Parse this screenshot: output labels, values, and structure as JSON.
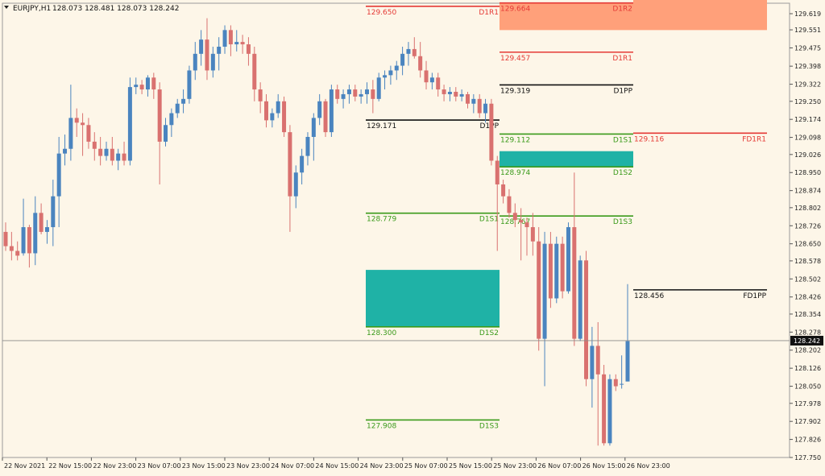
{
  "header": {
    "symbol_timeframe": "EURJPY,H1",
    "ohlc": "128.073 128.481 128.073 128.242"
  },
  "colors": {
    "background": "#fdf6e8",
    "bull": "#4a84bf",
    "bear": "#d9716f",
    "pivot": "#111111",
    "resistance": "#e53935",
    "support": "#3a9a1a",
    "zone_teal": "#1fb2a6",
    "zone_salmon": "#ffa07a",
    "bid_line": "#8a8a8a",
    "price_tag_bg": "#111111",
    "price_tag_fg": "#ffffff"
  },
  "current_price": "128.242",
  "chart_data": {
    "type": "candlestick",
    "ylim": [
      127.7,
      129.7
    ],
    "y_ticks": [
      "129.619",
      "129.551",
      "129.475",
      "129.398",
      "129.322",
      "129.250",
      "129.174",
      "129.098",
      "129.026",
      "128.950",
      "128.874",
      "128.802",
      "128.726",
      "128.650",
      "128.578",
      "128.502",
      "128.426",
      "128.354",
      "128.278",
      "128.202",
      "128.126",
      "128.050",
      "127.978",
      "127.902",
      "127.826",
      "127.750"
    ],
    "x_ticks": [
      "22 Nov 2021",
      "22 Nov 15:00",
      "22 Nov 23:00",
      "23 Nov 07:00",
      "23 Nov 15:00",
      "23 Nov 23:00",
      "24 Nov 07:00",
      "24 Nov 15:00",
      "24 Nov 23:00",
      "25 Nov 07:00",
      "25 Nov 15:00",
      "25 Nov 23:00",
      "26 Nov 07:00",
      "26 Nov 15:00",
      "26 Nov 23:00"
    ],
    "candles": [
      {
        "o": 128.7,
        "h": 128.74,
        "l": 128.62,
        "c": 128.64
      },
      {
        "o": 128.64,
        "h": 128.7,
        "l": 128.58,
        "c": 128.62
      },
      {
        "o": 128.62,
        "h": 128.66,
        "l": 128.58,
        "c": 128.6
      },
      {
        "o": 128.61,
        "h": 128.84,
        "l": 128.6,
        "c": 128.72
      },
      {
        "o": 128.72,
        "h": 128.73,
        "l": 128.55,
        "c": 128.61
      },
      {
        "o": 128.61,
        "h": 128.85,
        "l": 128.56,
        "c": 128.78
      },
      {
        "o": 128.78,
        "h": 128.82,
        "l": 128.69,
        "c": 128.7
      },
      {
        "o": 128.7,
        "h": 128.75,
        "l": 128.65,
        "c": 128.72
      },
      {
        "o": 128.72,
        "h": 128.92,
        "l": 128.64,
        "c": 128.85
      },
      {
        "o": 128.85,
        "h": 129.1,
        "l": 128.72,
        "c": 129.03
      },
      {
        "o": 129.03,
        "h": 129.11,
        "l": 128.98,
        "c": 129.05
      },
      {
        "o": 129.05,
        "h": 129.32,
        "l": 129.0,
        "c": 129.18
      },
      {
        "o": 129.18,
        "h": 129.22,
        "l": 129.1,
        "c": 129.16
      },
      {
        "o": 129.16,
        "h": 129.2,
        "l": 129.02,
        "c": 129.15
      },
      {
        "o": 129.15,
        "h": 129.18,
        "l": 129.05,
        "c": 129.08
      },
      {
        "o": 129.08,
        "h": 129.12,
        "l": 129.0,
        "c": 129.05
      },
      {
        "o": 129.05,
        "h": 129.1,
        "l": 128.98,
        "c": 129.02
      },
      {
        "o": 129.02,
        "h": 129.08,
        "l": 129.0,
        "c": 129.05
      },
      {
        "o": 129.05,
        "h": 129.1,
        "l": 128.98,
        "c": 129.0
      },
      {
        "o": 129.0,
        "h": 129.05,
        "l": 128.96,
        "c": 129.03
      },
      {
        "o": 129.03,
        "h": 129.08,
        "l": 128.98,
        "c": 129.0
      },
      {
        "o": 129.0,
        "h": 129.35,
        "l": 128.98,
        "c": 129.31
      },
      {
        "o": 129.31,
        "h": 129.35,
        "l": 129.28,
        "c": 129.32
      },
      {
        "o": 129.32,
        "h": 129.34,
        "l": 129.28,
        "c": 129.3
      },
      {
        "o": 129.3,
        "h": 129.36,
        "l": 129.27,
        "c": 129.35
      },
      {
        "o": 129.35,
        "h": 129.37,
        "l": 129.26,
        "c": 129.3
      },
      {
        "o": 129.3,
        "h": 129.33,
        "l": 128.9,
        "c": 129.08
      },
      {
        "o": 129.08,
        "h": 129.18,
        "l": 129.06,
        "c": 129.15
      },
      {
        "o": 129.15,
        "h": 129.22,
        "l": 129.1,
        "c": 129.2
      },
      {
        "o": 129.2,
        "h": 129.26,
        "l": 129.18,
        "c": 129.24
      },
      {
        "o": 129.24,
        "h": 129.3,
        "l": 129.2,
        "c": 129.26
      },
      {
        "o": 129.26,
        "h": 129.4,
        "l": 129.24,
        "c": 129.38
      },
      {
        "o": 129.38,
        "h": 129.5,
        "l": 129.34,
        "c": 129.45
      },
      {
        "o": 129.45,
        "h": 129.55,
        "l": 129.4,
        "c": 129.51
      },
      {
        "o": 129.51,
        "h": 129.6,
        "l": 129.34,
        "c": 129.38
      },
      {
        "o": 129.38,
        "h": 129.48,
        "l": 129.35,
        "c": 129.45
      },
      {
        "o": 129.45,
        "h": 129.52,
        "l": 129.38,
        "c": 129.48
      },
      {
        "o": 129.48,
        "h": 129.57,
        "l": 129.45,
        "c": 129.55
      },
      {
        "o": 129.55,
        "h": 129.57,
        "l": 129.44,
        "c": 129.49
      },
      {
        "o": 129.49,
        "h": 129.55,
        "l": 129.46,
        "c": 129.5
      },
      {
        "o": 129.5,
        "h": 129.53,
        "l": 129.45,
        "c": 129.49
      },
      {
        "o": 129.49,
        "h": 129.52,
        "l": 129.4,
        "c": 129.45
      },
      {
        "o": 129.45,
        "h": 129.48,
        "l": 129.25,
        "c": 129.3
      },
      {
        "o": 129.3,
        "h": 129.33,
        "l": 129.2,
        "c": 129.25
      },
      {
        "o": 129.25,
        "h": 129.28,
        "l": 129.14,
        "c": 129.17
      },
      {
        "o": 129.17,
        "h": 129.22,
        "l": 129.14,
        "c": 129.2
      },
      {
        "o": 129.2,
        "h": 129.28,
        "l": 129.18,
        "c": 129.25
      },
      {
        "o": 129.25,
        "h": 129.27,
        "l": 129.1,
        "c": 129.12
      },
      {
        "o": 129.12,
        "h": 129.15,
        "l": 128.7,
        "c": 128.85
      },
      {
        "o": 128.85,
        "h": 128.98,
        "l": 128.8,
        "c": 128.95
      },
      {
        "o": 128.95,
        "h": 129.05,
        "l": 128.9,
        "c": 129.02
      },
      {
        "o": 129.02,
        "h": 129.12,
        "l": 128.98,
        "c": 129.1
      },
      {
        "o": 129.1,
        "h": 129.2,
        "l": 129.0,
        "c": 129.18
      },
      {
        "o": 129.18,
        "h": 129.28,
        "l": 129.15,
        "c": 129.25
      },
      {
        "o": 129.25,
        "h": 129.26,
        "l": 129.1,
        "c": 129.12
      },
      {
        "o": 129.12,
        "h": 129.32,
        "l": 129.1,
        "c": 129.3
      },
      {
        "o": 129.3,
        "h": 129.32,
        "l": 129.24,
        "c": 129.26
      },
      {
        "o": 129.26,
        "h": 129.3,
        "l": 129.22,
        "c": 129.28
      },
      {
        "o": 129.28,
        "h": 129.32,
        "l": 129.24,
        "c": 129.3
      },
      {
        "o": 129.3,
        "h": 129.32,
        "l": 129.25,
        "c": 129.27
      },
      {
        "o": 129.27,
        "h": 129.3,
        "l": 129.24,
        "c": 129.28
      },
      {
        "o": 129.28,
        "h": 129.33,
        "l": 129.24,
        "c": 129.3
      },
      {
        "o": 129.3,
        "h": 129.34,
        "l": 129.2,
        "c": 129.26
      },
      {
        "o": 129.26,
        "h": 129.37,
        "l": 129.25,
        "c": 129.35
      },
      {
        "o": 129.35,
        "h": 129.38,
        "l": 129.3,
        "c": 129.36
      },
      {
        "o": 129.36,
        "h": 129.4,
        "l": 129.32,
        "c": 129.38
      },
      {
        "o": 129.38,
        "h": 129.42,
        "l": 129.34,
        "c": 129.4
      },
      {
        "o": 129.4,
        "h": 129.48,
        "l": 129.36,
        "c": 129.45
      },
      {
        "o": 129.45,
        "h": 129.5,
        "l": 129.4,
        "c": 129.47
      },
      {
        "o": 129.47,
        "h": 129.52,
        "l": 129.43,
        "c": 129.44
      },
      {
        "o": 129.44,
        "h": 129.5,
        "l": 129.35,
        "c": 129.38
      },
      {
        "o": 129.38,
        "h": 129.42,
        "l": 129.3,
        "c": 129.33
      },
      {
        "o": 129.33,
        "h": 129.37,
        "l": 129.3,
        "c": 129.35
      },
      {
        "o": 129.35,
        "h": 129.37,
        "l": 129.27,
        "c": 129.3
      },
      {
        "o": 129.3,
        "h": 129.32,
        "l": 129.25,
        "c": 129.28
      },
      {
        "o": 129.28,
        "h": 129.31,
        "l": 129.25,
        "c": 129.29
      },
      {
        "o": 129.29,
        "h": 129.31,
        "l": 129.25,
        "c": 129.27
      },
      {
        "o": 129.27,
        "h": 129.3,
        "l": 129.25,
        "c": 129.28
      },
      {
        "o": 129.28,
        "h": 129.29,
        "l": 129.22,
        "c": 129.24
      },
      {
        "o": 129.24,
        "h": 129.28,
        "l": 129.2,
        "c": 129.26
      },
      {
        "o": 129.26,
        "h": 129.28,
        "l": 129.18,
        "c": 129.2
      },
      {
        "o": 129.2,
        "h": 129.26,
        "l": 129.16,
        "c": 129.24
      },
      {
        "o": 129.24,
        "h": 129.26,
        "l": 128.98,
        "c": 129.0
      },
      {
        "o": 129.0,
        "h": 129.02,
        "l": 128.62,
        "c": 128.9
      },
      {
        "o": 128.9,
        "h": 128.92,
        "l": 128.82,
        "c": 128.85
      },
      {
        "o": 128.85,
        "h": 128.88,
        "l": 128.76,
        "c": 128.78
      },
      {
        "o": 128.78,
        "h": 128.82,
        "l": 128.72,
        "c": 128.75
      },
      {
        "o": 128.75,
        "h": 128.8,
        "l": 128.58,
        "c": 128.74
      },
      {
        "o": 128.74,
        "h": 128.76,
        "l": 128.6,
        "c": 128.72
      },
      {
        "o": 128.72,
        "h": 128.78,
        "l": 128.6,
        "c": 128.66
      },
      {
        "o": 128.66,
        "h": 128.72,
        "l": 128.2,
        "c": 128.25
      },
      {
        "o": 128.25,
        "h": 128.7,
        "l": 128.05,
        "c": 128.65
      },
      {
        "o": 128.65,
        "h": 128.7,
        "l": 128.38,
        "c": 128.42
      },
      {
        "o": 128.42,
        "h": 128.68,
        "l": 128.4,
        "c": 128.65
      },
      {
        "o": 128.65,
        "h": 128.68,
        "l": 128.42,
        "c": 128.45
      },
      {
        "o": 128.45,
        "h": 128.74,
        "l": 128.44,
        "c": 128.72
      },
      {
        "o": 128.72,
        "h": 128.95,
        "l": 128.22,
        "c": 128.25
      },
      {
        "o": 128.25,
        "h": 128.6,
        "l": 128.24,
        "c": 128.58
      },
      {
        "o": 128.58,
        "h": 128.62,
        "l": 128.05,
        "c": 128.08
      },
      {
        "o": 128.08,
        "h": 128.3,
        "l": 127.96,
        "c": 128.22
      },
      {
        "o": 128.22,
        "h": 128.32,
        "l": 127.8,
        "c": 128.1
      },
      {
        "o": 128.1,
        "h": 128.14,
        "l": 127.8,
        "c": 127.81
      },
      {
        "o": 127.81,
        "h": 128.1,
        "l": 127.8,
        "c": 128.08
      },
      {
        "o": 128.08,
        "h": 128.1,
        "l": 128.03,
        "c": 128.05
      },
      {
        "o": 128.06,
        "h": 128.18,
        "l": 128.04,
        "c": 128.06
      },
      {
        "o": 128.07,
        "h": 128.48,
        "l": 128.07,
        "c": 128.24
      }
    ],
    "levels": [
      {
        "label": "D1R1",
        "value": "129.650",
        "price": 129.65,
        "color": "resistance",
        "day": 0
      },
      {
        "label": "D1PP",
        "value": "129.171",
        "price": 129.171,
        "color": "pivot",
        "day": 0
      },
      {
        "label": "D1S1",
        "value": "128.779",
        "price": 128.779,
        "color": "support",
        "day": 0
      },
      {
        "label": "D1S2",
        "value": "128.300",
        "price": 128.3,
        "color": "support",
        "day": 0
      },
      {
        "label": "D1S3",
        "value": "127.908",
        "price": 127.908,
        "color": "support",
        "day": 0
      },
      {
        "label": "D1R2",
        "value": "129.664",
        "price": 129.664,
        "color": "resistance",
        "day": 1
      },
      {
        "label": "D1R1",
        "value": "129.457",
        "price": 129.457,
        "color": "resistance",
        "day": 1
      },
      {
        "label": "D1PP",
        "value": "129.319",
        "price": 129.319,
        "color": "pivot",
        "day": 1
      },
      {
        "label": "D1S1",
        "value": "129.112",
        "price": 129.112,
        "color": "support",
        "day": 1
      },
      {
        "label": "D1S2",
        "value": "128.974",
        "price": 128.974,
        "color": "support",
        "day": 1
      },
      {
        "label": "D1S3",
        "value": "128.767",
        "price": 128.767,
        "color": "support",
        "day": 1
      },
      {
        "label": "FD1R1",
        "value": "129.116",
        "price": 129.116,
        "color": "resistance",
        "day": 2
      },
      {
        "label": "FD1PP",
        "value": "128.456",
        "price": 128.456,
        "color": "pivot",
        "day": 2
      }
    ],
    "zones": [
      {
        "day": 0,
        "from": 128.3,
        "to": 128.54,
        "color": "zone_teal"
      },
      {
        "day": 1,
        "from": 128.974,
        "to": 129.04,
        "color": "zone_teal"
      },
      {
        "day": 1,
        "from": 129.55,
        "to": 129.664,
        "color": "zone_salmon"
      },
      {
        "day": 2,
        "from": 129.55,
        "to": 129.7,
        "color": "zone_salmon"
      }
    ]
  }
}
